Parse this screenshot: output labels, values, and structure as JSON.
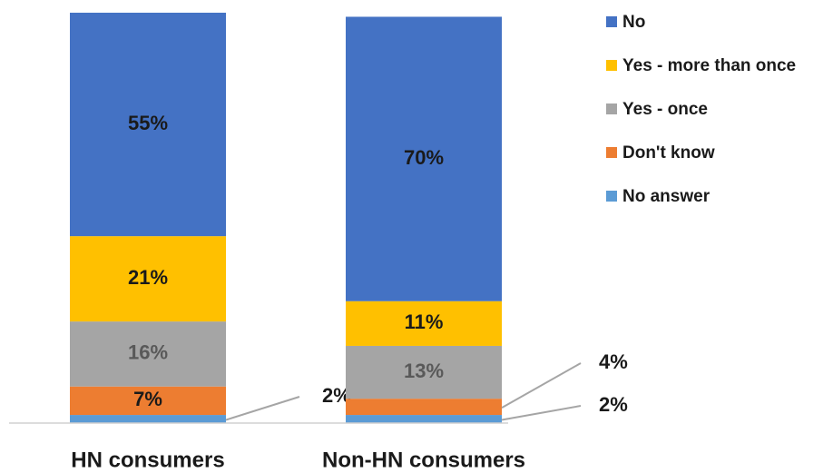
{
  "chart_data": {
    "type": "stacked-bar",
    "categories": [
      "HN consumers",
      "Non-HN consumers"
    ],
    "series": [
      {
        "name": "No",
        "color": "#4472c4",
        "values": [
          55,
          70
        ],
        "value_labels": [
          "55%",
          "70%"
        ]
      },
      {
        "name": "Yes - more than once",
        "color": "#ffc000",
        "values": [
          21,
          11
        ],
        "value_labels": [
          "21%",
          "11%"
        ]
      },
      {
        "name": "Yes - once",
        "color": "#a5a5a5",
        "values": [
          16,
          13
        ],
        "value_labels": [
          "16%",
          "13%"
        ]
      },
      {
        "name": "Don't know",
        "color": "#ed7d31",
        "values": [
          7,
          4
        ],
        "value_labels": [
          "7%",
          "4%"
        ]
      },
      {
        "name": "No answer",
        "color": "#5b9bd5",
        "values": [
          2,
          2
        ],
        "value_labels": [
          "2%",
          "2%"
        ]
      }
    ],
    "legend": "right"
  }
}
